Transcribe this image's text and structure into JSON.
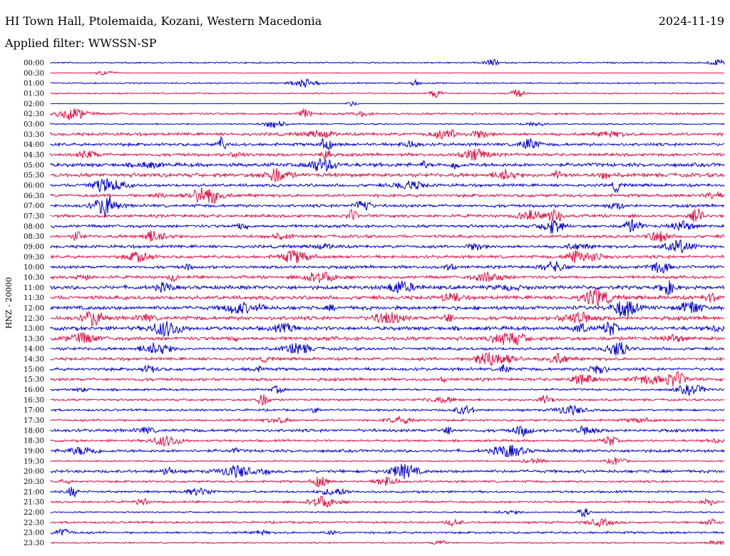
{
  "header": {
    "title": "HI Town Hall, Ptolemaida, Kozani, Western Macedonia",
    "date": "2024-11-19",
    "filter": "Applied filter: WWSSN-SP"
  },
  "chart_data": {
    "type": "line",
    "ylabel": "HNZ - 20000",
    "colors": [
      "#0000cc",
      "#dd1144"
    ],
    "rows": [
      {
        "label": "00:00",
        "level": 1
      },
      {
        "label": "00:30",
        "level": 0
      },
      {
        "label": "01:00",
        "level": 1
      },
      {
        "label": "01:30",
        "level": 1
      },
      {
        "label": "02:00",
        "level": 0
      },
      {
        "label": "02:30",
        "level": 2
      },
      {
        "label": "03:00",
        "level": 1
      },
      {
        "label": "03:30",
        "level": 3
      },
      {
        "label": "04:00",
        "level": 3
      },
      {
        "label": "04:30",
        "level": 3
      },
      {
        "label": "05:00",
        "level": 4
      },
      {
        "label": "05:30",
        "level": 4
      },
      {
        "label": "06:00",
        "level": 3
      },
      {
        "label": "06:30",
        "level": 3
      },
      {
        "label": "07:00",
        "level": 3
      },
      {
        "label": "07:30",
        "level": 3
      },
      {
        "label": "08:00",
        "level": 3
      },
      {
        "label": "08:30",
        "level": 3
      },
      {
        "label": "09:00",
        "level": 3
      },
      {
        "label": "09:30",
        "level": 3
      },
      {
        "label": "10:00",
        "level": 3
      },
      {
        "label": "10:30",
        "level": 3
      },
      {
        "label": "11:00",
        "level": 4
      },
      {
        "label": "11:30",
        "level": 4
      },
      {
        "label": "12:00",
        "level": 4
      },
      {
        "label": "12:30",
        "level": 4
      },
      {
        "label": "13:00",
        "level": 4
      },
      {
        "label": "13:30",
        "level": 4
      },
      {
        "label": "14:00",
        "level": 3
      },
      {
        "label": "14:30",
        "level": 3
      },
      {
        "label": "15:00",
        "level": 3
      },
      {
        "label": "15:30",
        "level": 3
      },
      {
        "label": "16:00",
        "level": 2
      },
      {
        "label": "16:30",
        "level": 2
      },
      {
        "label": "17:00",
        "level": 2
      },
      {
        "label": "17:30",
        "level": 2
      },
      {
        "label": "18:00",
        "level": 3
      },
      {
        "label": "18:30",
        "level": 2
      },
      {
        "label": "19:00",
        "level": 3
      },
      {
        "label": "19:30",
        "level": 1
      },
      {
        "label": "20:00",
        "level": 3
      },
      {
        "label": "20:30",
        "level": 2
      },
      {
        "label": "21:00",
        "level": 2
      },
      {
        "label": "21:30",
        "level": 2
      },
      {
        "label": "22:00",
        "level": 1
      },
      {
        "label": "22:30",
        "level": 2
      },
      {
        "label": "23:00",
        "level": 2
      },
      {
        "label": "23:30",
        "level": 1
      }
    ]
  }
}
